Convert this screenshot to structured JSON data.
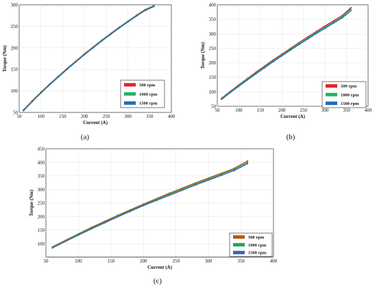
{
  "chart_data": [
    {
      "type": "line",
      "panel_label": "(a)",
      "xlabel": "Current (A)",
      "ylabel": "Torque (Nm)",
      "xlim": [
        50,
        400
      ],
      "ylim": [
        50,
        300
      ],
      "xticks": [
        50,
        100,
        150,
        200,
        250,
        300,
        350,
        400
      ],
      "yticks": [
        50,
        100,
        150,
        200,
        250,
        300
      ],
      "grid": true,
      "legend_position": "lower-right",
      "series": [
        {
          "name": "500 rpm",
          "color": "#e8202a",
          "x": [
            60,
            80,
            100,
            120,
            140,
            160,
            180,
            200,
            220,
            240,
            260,
            280,
            300,
            320,
            340,
            360
          ],
          "y": [
            56,
            77,
            97,
            116,
            134,
            152,
            169,
            186,
            202,
            218,
            233,
            248,
            262,
            276,
            289,
            298
          ]
        },
        {
          "name": "1000 rpm",
          "color": "#20b35a",
          "x": [
            60,
            80,
            100,
            120,
            140,
            160,
            180,
            200,
            220,
            240,
            260,
            280,
            300,
            320,
            340,
            360
          ],
          "y": [
            55,
            76,
            96,
            115,
            133,
            151,
            168,
            185,
            201,
            217,
            232,
            247,
            261,
            275,
            288,
            297
          ]
        },
        {
          "name": "1500 rpm",
          "color": "#1f6fb5",
          "x": [
            60,
            80,
            100,
            120,
            140,
            160,
            180,
            200,
            220,
            240,
            260,
            280,
            300,
            320,
            340,
            360
          ],
          "y": [
            54,
            75,
            95,
            114,
            132,
            150,
            167,
            184,
            200,
            216,
            231,
            246,
            260,
            274,
            287,
            296
          ]
        }
      ]
    },
    {
      "type": "line",
      "panel_label": "(b)",
      "xlabel": "Current (A)",
      "ylabel": "Torque (Nm)",
      "xlim": [
        50,
        400
      ],
      "ylim": [
        50,
        400
      ],
      "xticks": [
        50,
        100,
        150,
        200,
        250,
        300,
        350,
        400
      ],
      "yticks": [
        50,
        100,
        150,
        200,
        250,
        300,
        350,
        400
      ],
      "grid": true,
      "legend_position": "lower-right",
      "series": [
        {
          "name": "500 rpm",
          "color": "#e8202a",
          "x": [
            60,
            80,
            100,
            120,
            140,
            160,
            180,
            200,
            220,
            240,
            260,
            280,
            300,
            320,
            340,
            360
          ],
          "y": [
            78,
            101,
            124,
            146,
            168,
            189,
            210,
            230,
            250,
            270,
            289,
            308,
            327,
            345,
            363,
            390
          ]
        },
        {
          "name": "1000 rpm",
          "color": "#20b35a",
          "x": [
            60,
            80,
            100,
            120,
            140,
            160,
            180,
            200,
            220,
            240,
            260,
            280,
            300,
            320,
            340,
            360
          ],
          "y": [
            76,
            99,
            122,
            144,
            165,
            186,
            207,
            227,
            247,
            267,
            286,
            305,
            323,
            341,
            359,
            385
          ]
        },
        {
          "name": "1500 rpm",
          "color": "#1f6fb5",
          "x": [
            60,
            80,
            100,
            120,
            140,
            160,
            180,
            200,
            220,
            240,
            260,
            280,
            300,
            320,
            340,
            360
          ],
          "y": [
            74,
            97,
            119,
            141,
            162,
            183,
            204,
            224,
            244,
            263,
            282,
            301,
            319,
            337,
            355,
            380
          ]
        }
      ]
    },
    {
      "type": "line",
      "panel_label": "(c)",
      "xlabel": "Current (A)",
      "ylabel": "Torque (Nm)",
      "xlim": [
        50,
        400
      ],
      "ylim": [
        50,
        450
      ],
      "xticks": [
        50,
        100,
        150,
        200,
        250,
        300,
        350,
        400
      ],
      "yticks": [
        100,
        150,
        200,
        250,
        300,
        350,
        400,
        450
      ],
      "grid": true,
      "legend_position": "lower-right",
      "series": [
        {
          "name": "500 rpm",
          "color": "#b5561a",
          "x": [
            60,
            80,
            100,
            120,
            140,
            160,
            180,
            200,
            220,
            240,
            260,
            280,
            300,
            320,
            340,
            360
          ],
          "y": [
            88,
            112,
            136,
            160,
            182,
            204,
            225,
            246,
            266,
            286,
            305,
            324,
            342,
            360,
            378,
            405
          ]
        },
        {
          "name": "1000 rpm",
          "color": "#2e9e4e",
          "x": [
            60,
            80,
            100,
            120,
            140,
            160,
            180,
            200,
            220,
            240,
            260,
            280,
            300,
            320,
            340,
            360
          ],
          "y": [
            86,
            110,
            134,
            157,
            179,
            201,
            222,
            243,
            263,
            282,
            301,
            320,
            338,
            356,
            374,
            400
          ]
        },
        {
          "name": "1500 rpm",
          "color": "#3f63b8",
          "x": [
            60,
            80,
            100,
            120,
            140,
            160,
            180,
            200,
            220,
            240,
            260,
            280,
            300,
            320,
            340,
            360
          ],
          "y": [
            84,
            108,
            131,
            154,
            176,
            198,
            219,
            240,
            259,
            278,
            297,
            316,
            334,
            352,
            370,
            395
          ]
        }
      ]
    }
  ]
}
